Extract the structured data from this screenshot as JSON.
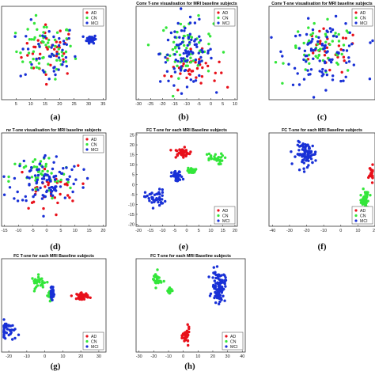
{
  "colors": {
    "AD": "#e8101a",
    "CN": "#33e63a",
    "MCI": "#1830d6"
  },
  "chart_data": [
    {
      "type": "scatter",
      "label": "(a)",
      "title": "",
      "xticks": [
        "5",
        "10",
        "15",
        "20",
        "25",
        "30",
        "35"
      ],
      "xlim": [
        0,
        36
      ],
      "ylim": [
        -1,
        1
      ],
      "yticks": [],
      "legend": [
        "AD",
        "CN",
        "MCI"
      ],
      "legend_position": "top-right",
      "series": [
        {
          "name": "AD",
          "count": 35,
          "clusters": [
            [
              17,
              0.05,
              9,
              0.5
            ]
          ]
        },
        {
          "name": "CN",
          "count": 60,
          "clusters": [
            [
              15,
              0.05,
              9,
              0.55
            ]
          ]
        },
        {
          "name": "MCI",
          "count": 90,
          "clusters": [
            [
              16,
              0.0,
              9,
              0.6
            ],
            [
              31,
              0.3,
              1.5,
              0.08
            ]
          ]
        }
      ]
    },
    {
      "type": "scatter",
      "label": "(b)",
      "title": "Conv T-sne visualisation for MRI baseline subjects",
      "xticks": [
        "-30",
        "-25",
        "-20",
        "-15",
        "-10",
        "-5",
        "0",
        "5",
        "10"
      ],
      "xlim": [
        -31,
        11
      ],
      "ylim": [
        -1,
        1
      ],
      "yticks": [],
      "legend": [
        "AD",
        "CN",
        "MCI"
      ],
      "legend_position": "top-right",
      "series": [
        {
          "name": "AD",
          "count": 35,
          "clusters": [
            [
              -8,
              -0.35,
              10,
              0.35
            ]
          ]
        },
        {
          "name": "CN",
          "count": 60,
          "clusters": [
            [
              -10,
              0.1,
              10,
              0.55
            ]
          ]
        },
        {
          "name": "MCI",
          "count": 90,
          "clusters": [
            [
              -10,
              0.0,
              10,
              0.6
            ]
          ]
        }
      ]
    },
    {
      "type": "scatter",
      "label": "(c)",
      "title": "Conv T-sne visualisation for MRI baseline subjects",
      "xticks": [],
      "xlim": [
        -1,
        1
      ],
      "ylim": [
        -1,
        1
      ],
      "yticks": [],
      "legend": [
        "AD",
        "CN",
        "MCI"
      ],
      "legend_position": "top-right",
      "series": [
        {
          "name": "AD",
          "count": 30,
          "clusters": [
            [
              0.1,
              0.0,
              0.55,
              0.45
            ]
          ]
        },
        {
          "name": "CN",
          "count": 50,
          "clusters": [
            [
              0.0,
              0.05,
              0.6,
              0.5
            ]
          ]
        },
        {
          "name": "MCI",
          "count": 90,
          "clusters": [
            [
              0.05,
              0.0,
              0.65,
              0.6
            ]
          ]
        }
      ]
    },
    {
      "type": "scatter",
      "label": "(d)",
      "title": "nv T-sne visualisation for MRI baseline subjects",
      "xticks": [
        "-15",
        "-10",
        "-5",
        "0",
        "5",
        "10",
        "15",
        "20"
      ],
      "xlim": [
        -16,
        21
      ],
      "ylim": [
        -1,
        1
      ],
      "yticks": [],
      "legend": [
        "AD",
        "CN",
        "MCI"
      ],
      "legend_position": "top-right",
      "series": [
        {
          "name": "AD",
          "count": 35,
          "clusters": [
            [
              0,
              -0.2,
              10,
              0.45
            ]
          ]
        },
        {
          "name": "CN",
          "count": 45,
          "clusters": [
            [
              -2,
              0.05,
              10,
              0.45
            ]
          ]
        },
        {
          "name": "MCI",
          "count": 95,
          "clusters": [
            [
              0,
              0.0,
              11,
              0.5
            ]
          ]
        }
      ]
    },
    {
      "type": "scatter",
      "label": "(e)",
      "title": "FC T-sne for each MRI Baseline subjects",
      "xticks": [
        "-20",
        "-15",
        "-10",
        "-5",
        "0",
        "5",
        "10",
        "15",
        "20"
      ],
      "xlim": [
        -21,
        21
      ],
      "yticks": [
        "25",
        "20",
        "15",
        "10",
        "5",
        "0",
        "-5",
        "-10",
        "-15",
        "-20"
      ],
      "ylim": [
        -21,
        26
      ],
      "legend": [
        "AD",
        "CN",
        "MCI"
      ],
      "legend_position": "bottom-right",
      "series": [
        {
          "name": "AD",
          "count": 45,
          "clusters": [
            [
              -2,
              16,
              3.2,
              2.2
            ]
          ]
        },
        {
          "name": "CN",
          "count": 55,
          "clusters": [
            [
              11,
              13,
              3.8,
              2.6
            ],
            [
              2,
              7,
              1.5,
              1.2
            ]
          ]
        },
        {
          "name": "MCI",
          "count": 90,
          "clusters": [
            [
              -13,
              -7,
              3.8,
              4.0
            ],
            [
              -4,
              4,
              2.0,
              2.5
            ]
          ]
        }
      ]
    },
    {
      "type": "scatter",
      "label": "(f)",
      "title": "FC T-sne for each MRI Baseline subjects",
      "xticks": [
        "-40",
        "-30",
        "-20",
        "-10",
        "0",
        "10",
        "20"
      ],
      "xlim": [
        -42,
        20
      ],
      "yticks": [],
      "ylim": [
        -1,
        1
      ],
      "legend": [
        "AD",
        "CN",
        "MCI"
      ],
      "legend_position": "bottom-left",
      "series": [
        {
          "name": "AD",
          "count": 20,
          "clusters": [
            [
              18,
              0.15,
              1.5,
              0.15
            ]
          ]
        },
        {
          "name": "CN",
          "count": 55,
          "clusters": [
            [
              14,
              -0.5,
              2.2,
              0.25
            ]
          ]
        },
        {
          "name": "MCI",
          "count": 90,
          "clusters": [
            [
              -20,
              0.55,
              5.5,
              0.22
            ]
          ]
        }
      ]
    },
    {
      "type": "scatter",
      "label": "(g)",
      "title": "FC T-sne for each MRI Baseline subjects",
      "xticks": [
        "-20",
        "-10",
        "0",
        "10",
        "20",
        "30"
      ],
      "xlim": [
        -24,
        34
      ],
      "yticks": [],
      "ylim": [
        -1,
        1
      ],
      "legend": [
        "AD",
        "CN",
        "MCI"
      ],
      "legend_position": "bottom-right",
      "series": [
        {
          "name": "AD",
          "count": 45,
          "clusters": [
            [
              21,
              0.2,
              3.0,
              0.06
            ]
          ]
        },
        {
          "name": "CN",
          "count": 60,
          "clusters": [
            [
              -3,
              0.5,
              4.0,
              0.12
            ],
            [
              3,
              0.22,
              1.2,
              0.1
            ]
          ]
        },
        {
          "name": "MCI",
          "count": 90,
          "clusters": [
            [
              -22,
              -0.55,
              5.0,
              0.2
            ],
            [
              4,
              0.25,
              0.9,
              0.1
            ]
          ]
        }
      ]
    },
    {
      "type": "scatter",
      "label": "(h)",
      "title": "FC T-sne for each MRI Baseline subjects",
      "xticks": [
        "-30",
        "-20",
        "-10",
        "0",
        "10",
        "20",
        "30",
        "40"
      ],
      "xlim": [
        -32,
        42
      ],
      "yticks": [],
      "ylim": [
        -1,
        1
      ],
      "legend": [
        "AD",
        "CN",
        "MCI"
      ],
      "legend_position": "bottom-left",
      "series": [
        {
          "name": "AD",
          "count": 45,
          "clusters": [
            [
              2,
              -0.65,
              2.0,
              0.15
            ]
          ]
        },
        {
          "name": "CN",
          "count": 50,
          "clusters": [
            [
              -18,
              0.55,
              3.0,
              0.15
            ],
            [
              -9,
              0.32,
              1.3,
              0.08
            ]
          ]
        },
        {
          "name": "MCI",
          "count": 95,
          "clusters": [
            [
              24,
              0.4,
              4.0,
              0.3
            ]
          ]
        }
      ]
    }
  ]
}
